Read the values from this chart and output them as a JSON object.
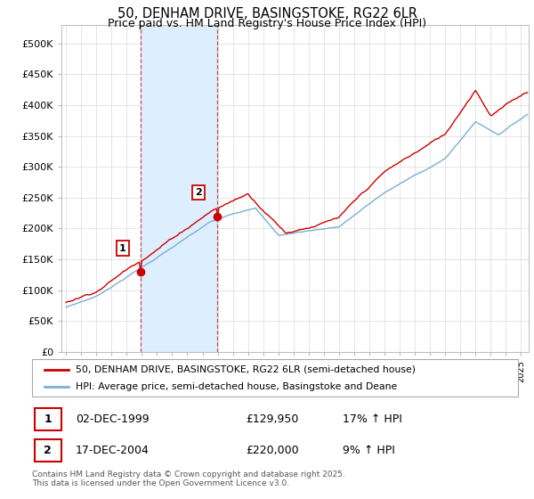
{
  "title": "50, DENHAM DRIVE, BASINGSTOKE, RG22 6LR",
  "subtitle": "Price paid vs. HM Land Registry's House Price Index (HPI)",
  "title_fontsize": 10.5,
  "subtitle_fontsize": 9,
  "ylabel_ticks": [
    "£0",
    "£50K",
    "£100K",
    "£150K",
    "£200K",
    "£250K",
    "£300K",
    "£350K",
    "£400K",
    "£450K",
    "£500K"
  ],
  "ytick_values": [
    0,
    50000,
    100000,
    150000,
    200000,
    250000,
    300000,
    350000,
    400000,
    450000,
    500000
  ],
  "ylim": [
    0,
    530000
  ],
  "xlim_start": 1994.7,
  "xlim_end": 2025.5,
  "xtick_years": [
    1995,
    1996,
    1997,
    1998,
    1999,
    2000,
    2001,
    2002,
    2003,
    2004,
    2005,
    2006,
    2007,
    2008,
    2009,
    2010,
    2011,
    2012,
    2013,
    2014,
    2015,
    2016,
    2017,
    2018,
    2019,
    2020,
    2021,
    2022,
    2023,
    2024,
    2025
  ],
  "sale1_x": 1999.92,
  "sale1_y": 129950,
  "sale2_x": 2004.96,
  "sale2_y": 220000,
  "shaded_start": 1999.92,
  "shaded_end": 2004.96,
  "property_color": "#cc0000",
  "hpi_color": "#7ab0d4",
  "shaded_color": "#ddeeff",
  "vline_color": "#cc3333",
  "box_color": "#cc0000",
  "legend_property_label": "50, DENHAM DRIVE, BASINGSTOKE, RG22 6LR (semi-detached house)",
  "legend_hpi_label": "HPI: Average price, semi-detached house, Basingstoke and Deane",
  "table_rows": [
    {
      "num": "1",
      "date": "02-DEC-1999",
      "price": "£129,950",
      "change": "17% ↑ HPI"
    },
    {
      "num": "2",
      "date": "17-DEC-2004",
      "price": "£220,000",
      "change": "9% ↑ HPI"
    }
  ],
  "footnote": "Contains HM Land Registry data © Crown copyright and database right 2025.\nThis data is licensed under the Open Government Licence v3.0.",
  "background_color": "#ffffff",
  "grid_color": "#e0e0e0"
}
